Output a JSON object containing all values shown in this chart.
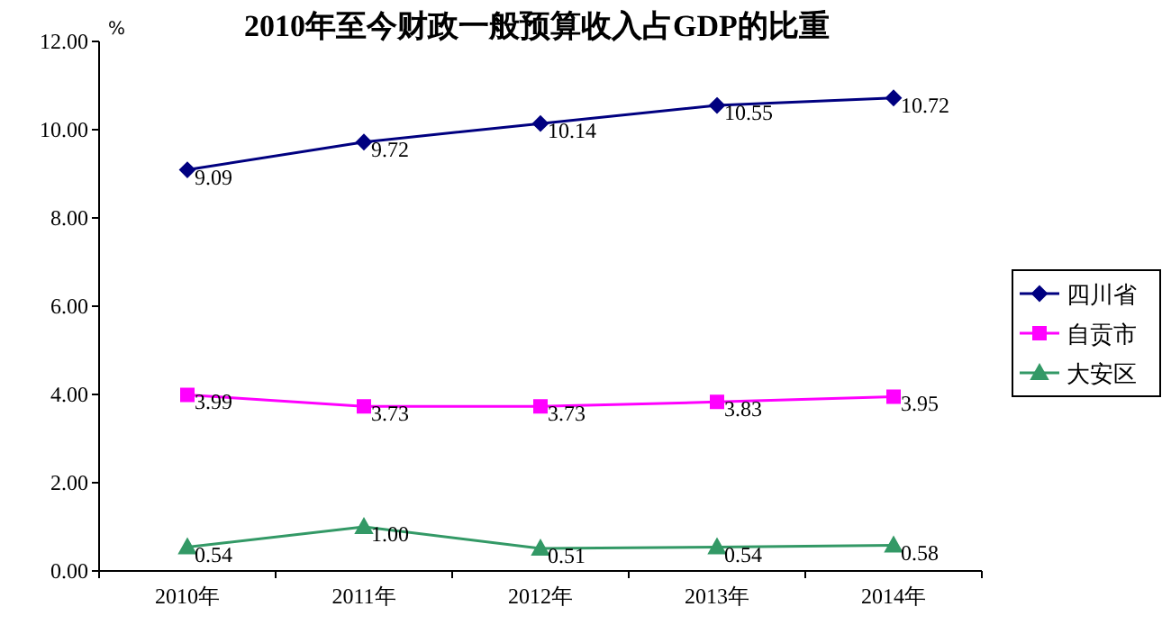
{
  "chart_data": {
    "type": "line",
    "title": "2010年至今财政一般预算收入占GDP的比重",
    "ylabel": "%",
    "categories": [
      "2010年",
      "2011年",
      "2012年",
      "2013年",
      "2014年"
    ],
    "ylim": [
      0,
      12
    ],
    "yticks": [
      {
        "value": 0,
        "label": "0.00"
      },
      {
        "value": 2,
        "label": "2.00"
      },
      {
        "value": 4,
        "label": "4.00"
      },
      {
        "value": 6,
        "label": "6.00"
      },
      {
        "value": 8,
        "label": "8.00"
      },
      {
        "value": 10,
        "label": "10.00"
      },
      {
        "value": 12,
        "label": "12.00"
      }
    ],
    "legend": "right",
    "series": [
      {
        "name": "四川省",
        "color": "#000080",
        "marker": "diamond",
        "values": [
          9.09,
          9.72,
          10.14,
          10.55,
          10.72
        ],
        "value_labels": [
          "9.09",
          "9.72",
          "10.14",
          "10.55",
          "10.72"
        ]
      },
      {
        "name": "自贡市",
        "color": "#ff00ff",
        "marker": "square",
        "values": [
          3.99,
          3.73,
          3.73,
          3.83,
          3.95
        ],
        "value_labels": [
          "3.99",
          "3.73",
          "3.73",
          "3.83",
          "3.95"
        ]
      },
      {
        "name": "大安区",
        "color": "#339966",
        "marker": "triangle",
        "values": [
          0.54,
          1.0,
          0.51,
          0.54,
          0.58
        ],
        "value_labels": [
          "0.54",
          "1.00",
          "0.51",
          "0.54",
          "0.58"
        ]
      }
    ]
  }
}
